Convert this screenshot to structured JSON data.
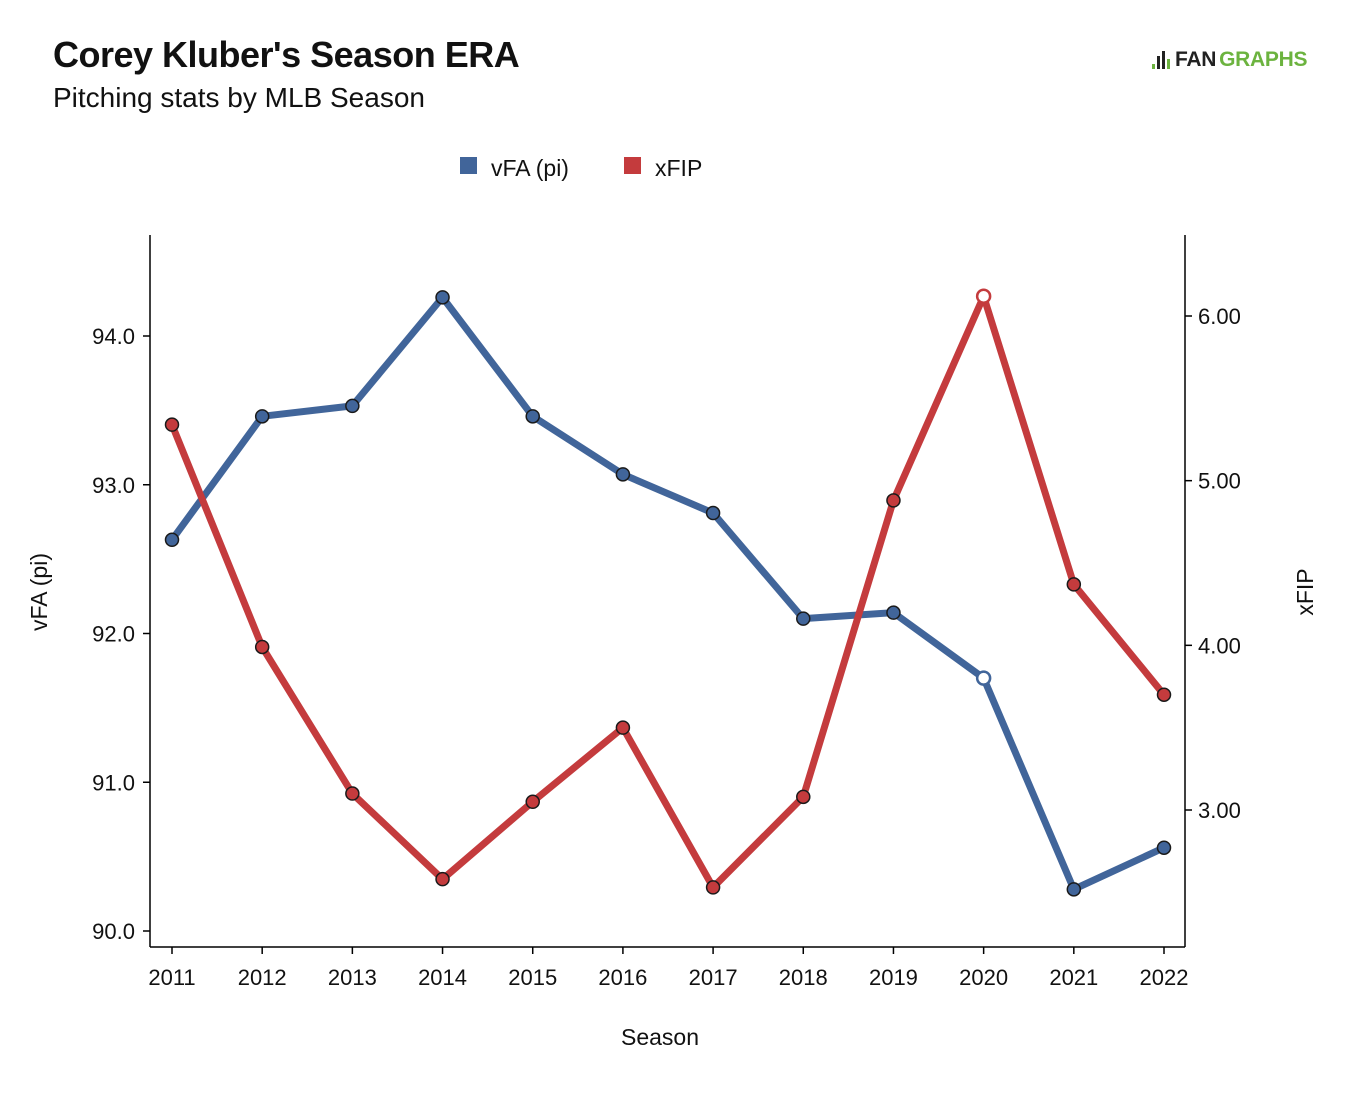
{
  "header": {
    "title": "Corey Kluber's Season ERA",
    "subtitle": "Pitching stats by MLB Season"
  },
  "brand": {
    "name_part1": "FAN",
    "name_part2": "GRAPHS",
    "icon": "fangraphs-logo-icon",
    "color_dark": "#222222",
    "color_green": "#6cb33f"
  },
  "chart_data": {
    "type": "line",
    "x": [
      2011,
      2012,
      2013,
      2014,
      2015,
      2016,
      2017,
      2018,
      2019,
      2020,
      2021,
      2022
    ],
    "xlabel": "Season",
    "legend_position": "top-center",
    "grid": false,
    "y_left": {
      "label": "vFA (pi)",
      "range": [
        90.0,
        94.6
      ],
      "ticks": [
        90.0,
        91.0,
        92.0,
        93.0,
        94.0
      ],
      "tick_labels": [
        "90.0",
        "91.0",
        "92.0",
        "93.0",
        "94.0"
      ]
    },
    "y_right": {
      "label": "xFIP",
      "range": [
        2.2,
        6.5
      ],
      "ticks": [
        3.0,
        4.0,
        5.0,
        6.0
      ],
      "tick_labels": [
        "3.00",
        "4.00",
        "5.00",
        "6.00"
      ]
    },
    "series": [
      {
        "name": "vFA (pi)",
        "axis": "left",
        "color": "#41659a",
        "values": [
          92.63,
          93.46,
          93.53,
          94.26,
          93.46,
          93.07,
          92.81,
          92.1,
          92.14,
          91.7,
          90.28,
          90.56
        ],
        "hollow_points": [
          2020
        ]
      },
      {
        "name": "xFIP",
        "axis": "right",
        "color": "#c43b3d",
        "values": [
          5.34,
          3.99,
          3.1,
          2.58,
          3.05,
          3.5,
          2.53,
          3.08,
          4.88,
          6.12,
          4.37,
          3.7
        ],
        "hollow_points": [
          2020
        ]
      }
    ]
  }
}
